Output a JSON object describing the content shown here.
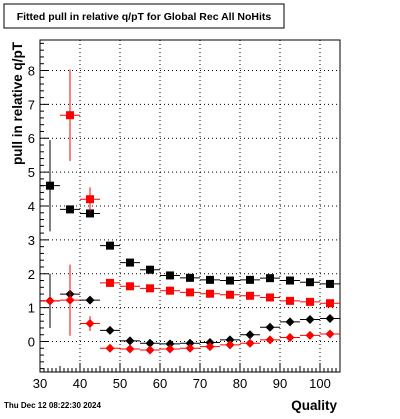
{
  "colors": {
    "background": "#ffffff",
    "frame": "#000000",
    "grid": "#000000",
    "series_black": "#000000",
    "series_red": "#ff0000"
  },
  "chart_data": {
    "type": "scatter",
    "title": "Fitted pull in relative q/pT for Global Rec All NoHits",
    "xlabel": "Quality",
    "ylabel": "pull in relative q/pT",
    "timestamp": "Thu Dec 12 08:22:30 2024",
    "xlim": [
      30,
      105
    ],
    "ylim": [
      -0.9,
      8.9
    ],
    "grid": true,
    "legend": "none",
    "x_ticks": [
      30,
      40,
      50,
      60,
      70,
      80,
      90,
      100
    ],
    "y_ticks": [
      0,
      1,
      2,
      3,
      4,
      5,
      6,
      7,
      8
    ],
    "series": [
      {
        "marker": "square",
        "color": "#000000",
        "points": [
          {
            "x": 32.5,
            "y": 4.6,
            "yerr": 1.35
          },
          {
            "x": 37.5,
            "y": 3.9,
            "yerr": 0.0
          },
          {
            "x": 42.5,
            "y": 3.78,
            "yerr": 0.0
          },
          {
            "x": 47.5,
            "y": 2.83,
            "yerr": 0.0
          },
          {
            "x": 52.5,
            "y": 2.33,
            "yerr": 0.0
          },
          {
            "x": 57.5,
            "y": 2.12,
            "yerr": 0.0
          },
          {
            "x": 62.5,
            "y": 1.95,
            "yerr": 0.0
          },
          {
            "x": 67.5,
            "y": 1.88,
            "yerr": 0.0
          },
          {
            "x": 72.5,
            "y": 1.82,
            "yerr": 0.0
          },
          {
            "x": 77.5,
            "y": 1.8,
            "yerr": 0.0
          },
          {
            "x": 82.5,
            "y": 1.82,
            "yerr": 0.0
          },
          {
            "x": 87.5,
            "y": 1.87,
            "yerr": 0.0
          },
          {
            "x": 92.5,
            "y": 1.8,
            "yerr": 0.0
          },
          {
            "x": 97.5,
            "y": 1.75,
            "yerr": 0.0
          },
          {
            "x": 102.5,
            "y": 1.7,
            "yerr": 0.0
          }
        ]
      },
      {
        "marker": "square",
        "color": "#ff0000",
        "points": [
          {
            "x": 37.5,
            "y": 6.68,
            "yerr": 1.35
          },
          {
            "x": 42.5,
            "y": 4.2,
            "yerr": 0.35
          },
          {
            "x": 47.5,
            "y": 1.73,
            "yerr": 0.0
          },
          {
            "x": 52.5,
            "y": 1.63,
            "yerr": 0.0
          },
          {
            "x": 57.5,
            "y": 1.57,
            "yerr": 0.0
          },
          {
            "x": 62.5,
            "y": 1.5,
            "yerr": 0.0
          },
          {
            "x": 67.5,
            "y": 1.45,
            "yerr": 0.0
          },
          {
            "x": 72.5,
            "y": 1.41,
            "yerr": 0.0
          },
          {
            "x": 77.5,
            "y": 1.38,
            "yerr": 0.0
          },
          {
            "x": 82.5,
            "y": 1.35,
            "yerr": 0.0
          },
          {
            "x": 87.5,
            "y": 1.3,
            "yerr": 0.0
          },
          {
            "x": 92.5,
            "y": 1.2,
            "yerr": 0.0
          },
          {
            "x": 97.5,
            "y": 1.17,
            "yerr": 0.0
          },
          {
            "x": 102.5,
            "y": 1.13,
            "yerr": 0.0
          }
        ]
      },
      {
        "marker": "diamond",
        "color": "#000000",
        "points": [
          {
            "x": 32.5,
            "y": 1.2,
            "yerr": 0.8
          },
          {
            "x": 37.5,
            "y": 1.4,
            "yerr": 0.0
          },
          {
            "x": 42.5,
            "y": 1.22,
            "yerr": 0.0
          },
          {
            "x": 47.5,
            "y": 0.33,
            "yerr": 0.0
          },
          {
            "x": 52.5,
            "y": 0.02,
            "yerr": 0.0
          },
          {
            "x": 57.5,
            "y": -0.05,
            "yerr": 0.0
          },
          {
            "x": 62.5,
            "y": -0.07,
            "yerr": 0.0
          },
          {
            "x": 67.5,
            "y": -0.05,
            "yerr": 0.0
          },
          {
            "x": 72.5,
            "y": -0.03,
            "yerr": 0.0
          },
          {
            "x": 77.5,
            "y": 0.05,
            "yerr": 0.0
          },
          {
            "x": 82.5,
            "y": 0.2,
            "yerr": 0.0
          },
          {
            "x": 87.5,
            "y": 0.42,
            "yerr": 0.0
          },
          {
            "x": 92.5,
            "y": 0.58,
            "yerr": 0.0
          },
          {
            "x": 97.5,
            "y": 0.65,
            "yerr": 0.0
          },
          {
            "x": 102.5,
            "y": 0.68,
            "yerr": 0.0
          }
        ]
      },
      {
        "marker": "diamond",
        "color": "#ff0000",
        "points": [
          {
            "x": 32.5,
            "y": 1.2,
            "yerr": 0.0
          },
          {
            "x": 37.5,
            "y": 1.22,
            "yerr": 1.05
          },
          {
            "x": 42.5,
            "y": 0.53,
            "yerr": 0.22
          },
          {
            "x": 47.5,
            "y": -0.2,
            "yerr": 0.0
          },
          {
            "x": 52.5,
            "y": -0.22,
            "yerr": 0.0
          },
          {
            "x": 57.5,
            "y": -0.25,
            "yerr": 0.0
          },
          {
            "x": 62.5,
            "y": -0.22,
            "yerr": 0.0
          },
          {
            "x": 67.5,
            "y": -0.2,
            "yerr": 0.0
          },
          {
            "x": 72.5,
            "y": -0.15,
            "yerr": 0.0
          },
          {
            "x": 77.5,
            "y": -0.1,
            "yerr": 0.0
          },
          {
            "x": 82.5,
            "y": -0.05,
            "yerr": 0.0
          },
          {
            "x": 87.5,
            "y": 0.05,
            "yerr": 0.0
          },
          {
            "x": 92.5,
            "y": 0.12,
            "yerr": 0.0
          },
          {
            "x": 97.5,
            "y": 0.18,
            "yerr": 0.0
          },
          {
            "x": 102.5,
            "y": 0.22,
            "yerr": 0.0
          }
        ]
      }
    ]
  }
}
